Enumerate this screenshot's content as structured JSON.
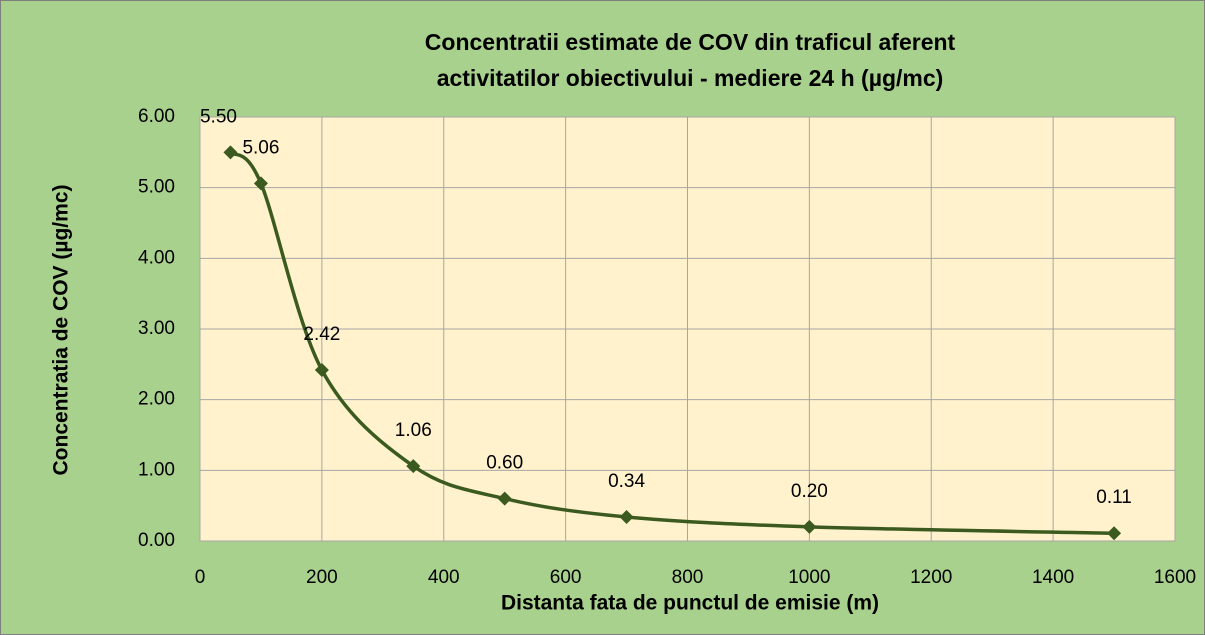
{
  "chart_data": {
    "type": "scatter-smooth",
    "title": [
      "Concentratii estimate de COV din traficul aferent",
      "activitatilor obiectivului - mediere 24 h (µg/mc)"
    ],
    "x_label": "Distanta fata de punctul de emisie (m)",
    "y_label": "Concentratia de  COV (µg/mc)",
    "x": [
      50,
      100,
      200,
      350,
      500,
      700,
      1000,
      1500
    ],
    "values": [
      5.5,
      5.06,
      2.42,
      1.06,
      0.6,
      0.34,
      0.2,
      0.11
    ],
    "value_labels": [
      "5.50",
      "5.06",
      "2.42",
      "1.06",
      "0.60",
      "0.34",
      "0.20",
      "0.11"
    ],
    "color": "#3b5a1f",
    "xlim": [
      0,
      1600
    ],
    "xticks": [
      0,
      200,
      400,
      600,
      800,
      1000,
      1200,
      1400,
      1600
    ],
    "ylim": [
      0,
      6
    ],
    "yticks": [
      {
        "value": 0,
        "label": "0.00"
      },
      {
        "value": 1,
        "label": "1.00"
      },
      {
        "value": 2,
        "label": "2.00"
      },
      {
        "value": 3,
        "label": "3.00"
      },
      {
        "value": 4,
        "label": "4.00"
      },
      {
        "value": 5,
        "label": "5.00"
      },
      {
        "value": 6,
        "label": "6.00"
      }
    ],
    "grid": true
  }
}
